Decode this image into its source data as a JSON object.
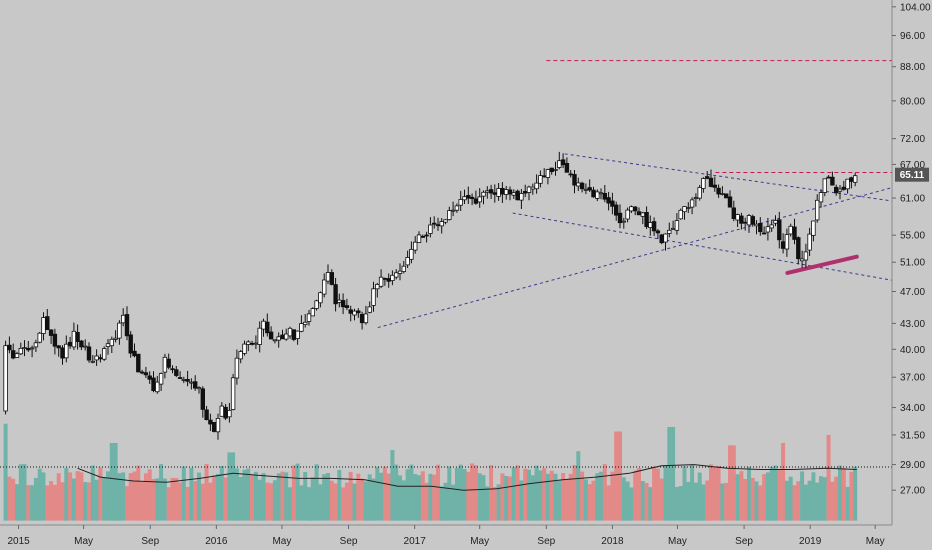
{
  "chart_data": {
    "type": "candlestick",
    "y_axis": {
      "scale": "log",
      "ylim": [
        24.5,
        106
      ],
      "ticks": [
        "104.00",
        "96.00",
        "88.00",
        "80.00",
        "72.00",
        "67.00",
        "61.00",
        "55.00",
        "51.00",
        "47.00",
        "43.00",
        "40.00",
        "37.00",
        "34.00",
        "31.50",
        "29.00",
        "27.00"
      ]
    },
    "x_axis": {
      "range": [
        "2014-11-24",
        "2019-06-01"
      ],
      "ticks": [
        {
          "date": "2015-01-01",
          "label": "2015"
        },
        {
          "date": "2015-05-01",
          "label": "May"
        },
        {
          "date": "2015-09-01",
          "label": "Sep"
        },
        {
          "date": "2016-01-01",
          "label": "2016"
        },
        {
          "date": "2016-05-01",
          "label": "May"
        },
        {
          "date": "2016-09-01",
          "label": "Sep"
        },
        {
          "date": "2017-01-01",
          "label": "2017"
        },
        {
          "date": "2017-05-01",
          "label": "May"
        },
        {
          "date": "2017-09-01",
          "label": "Sep"
        },
        {
          "date": "2018-01-01",
          "label": "2018"
        },
        {
          "date": "2018-05-01",
          "label": "May"
        },
        {
          "date": "2018-09-01",
          "label": "Sep"
        },
        {
          "date": "2019-01-01",
          "label": "2019"
        },
        {
          "date": "2019-05-01",
          "label": "May"
        }
      ]
    },
    "last_price": "65.11",
    "price_path": [
      [
        "2014-12-08",
        33.5
      ],
      [
        "2014-12-16",
        41.5
      ],
      [
        "2014-12-28",
        39.0
      ],
      [
        "2015-01-10",
        40.0
      ],
      [
        "2015-01-25",
        39.5
      ],
      [
        "2015-02-10",
        41.0
      ],
      [
        "2015-02-25",
        43.5
      ],
      [
        "2015-03-15",
        40.0
      ],
      [
        "2015-04-01",
        39.5
      ],
      [
        "2015-04-20",
        41.5
      ],
      [
        "2015-05-05",
        40.5
      ],
      [
        "2015-05-25",
        38.5
      ],
      [
        "2015-06-15",
        39.5
      ],
      [
        "2015-07-05",
        41.5
      ],
      [
        "2015-07-20",
        43.5
      ],
      [
        "2015-08-05",
        39.5
      ],
      [
        "2015-08-25",
        37.0
      ],
      [
        "2015-09-15",
        36.0
      ],
      [
        "2015-10-05",
        39.0
      ],
      [
        "2015-10-25",
        37.0
      ],
      [
        "2015-11-15",
        36.5
      ],
      [
        "2015-12-05",
        36.0
      ],
      [
        "2015-12-20",
        32.5
      ],
      [
        "2016-01-05",
        32.0
      ],
      [
        "2016-01-18",
        34.5
      ],
      [
        "2016-01-28",
        32.5
      ],
      [
        "2016-02-10",
        38.0
      ],
      [
        "2016-02-25",
        40.0
      ],
      [
        "2016-03-15",
        40.5
      ],
      [
        "2016-04-05",
        43.0
      ],
      [
        "2016-04-25",
        41.0
      ],
      [
        "2016-05-15",
        42.0
      ],
      [
        "2016-06-05",
        41.5
      ],
      [
        "2016-06-25",
        44.0
      ],
      [
        "2016-07-15",
        47.0
      ],
      [
        "2016-08-01",
        49.0
      ],
      [
        "2016-08-15",
        46.0
      ],
      [
        "2016-09-01",
        45.0
      ],
      [
        "2016-09-20",
        44.0
      ],
      [
        "2016-10-10",
        43.5
      ],
      [
        "2016-10-25",
        47.0
      ],
      [
        "2016-11-10",
        48.5
      ],
      [
        "2016-11-30",
        49.0
      ],
      [
        "2016-12-15",
        50.5
      ],
      [
        "2017-01-05",
        53.5
      ],
      [
        "2017-01-20",
        55.0
      ],
      [
        "2017-02-10",
        56.0
      ],
      [
        "2017-03-01",
        57.0
      ],
      [
        "2017-03-20",
        59.0
      ],
      [
        "2017-04-10",
        61.0
      ],
      [
        "2017-04-25",
        60.0
      ],
      [
        "2017-05-10",
        62.0
      ],
      [
        "2017-05-30",
        61.5
      ],
      [
        "2017-06-15",
        62.5
      ],
      [
        "2017-07-05",
        61.0
      ],
      [
        "2017-07-25",
        62.0
      ],
      [
        "2017-08-10",
        63.5
      ],
      [
        "2017-09-01",
        64.5
      ],
      [
        "2017-09-20",
        66.0
      ],
      [
        "2017-10-05",
        67.5
      ],
      [
        "2017-10-20",
        66.0
      ],
      [
        "2017-11-05",
        63.0
      ],
      [
        "2017-11-25",
        61.5
      ],
      [
        "2017-12-15",
        62.5
      ],
      [
        "2018-01-05",
        60.0
      ],
      [
        "2018-01-20",
        56.5
      ],
      [
        "2018-02-10",
        59.0
      ],
      [
        "2018-03-01",
        58.0
      ],
      [
        "2018-03-20",
        56.5
      ],
      [
        "2018-04-10",
        54.5
      ],
      [
        "2018-04-25",
        55.0
      ],
      [
        "2018-05-10",
        57.5
      ],
      [
        "2018-05-30",
        60.5
      ],
      [
        "2018-06-15",
        62.0
      ],
      [
        "2018-07-01",
        64.5
      ],
      [
        "2018-07-15",
        63.5
      ],
      [
        "2018-08-01",
        61.0
      ],
      [
        "2018-08-15",
        59.0
      ],
      [
        "2018-09-01",
        57.0
      ],
      [
        "2018-09-20",
        58.0
      ],
      [
        "2018-10-05",
        56.0
      ],
      [
        "2018-10-20",
        55.5
      ],
      [
        "2018-11-05",
        56.5
      ],
      [
        "2018-11-20",
        53.0
      ],
      [
        "2018-12-05",
        57.0
      ],
      [
        "2018-12-15",
        52.0
      ],
      [
        "2018-12-25",
        51.0
      ],
      [
        "2019-01-05",
        54.0
      ],
      [
        "2019-01-15",
        58.0
      ],
      [
        "2019-01-25",
        62.0
      ],
      [
        "2019-02-05",
        64.5
      ],
      [
        "2019-02-20",
        63.0
      ],
      [
        "2019-03-05",
        62.5
      ],
      [
        "2019-03-20",
        64.0
      ],
      [
        "2019-03-28",
        65.1
      ]
    ],
    "volume": {
      "moving_average_path": [
        [
          "2015-04-20",
          28.7
        ],
        [
          "2015-06-01",
          28.0
        ],
        [
          "2015-08-01",
          27.7
        ],
        [
          "2015-10-01",
          27.6
        ],
        [
          "2015-12-01",
          27.9
        ],
        [
          "2016-02-01",
          28.3
        ],
        [
          "2016-04-01",
          28.1
        ],
        [
          "2016-06-01",
          27.9
        ],
        [
          "2016-08-01",
          27.9
        ],
        [
          "2016-10-01",
          27.8
        ],
        [
          "2016-12-01",
          27.3
        ],
        [
          "2017-02-01",
          27.3
        ],
        [
          "2017-04-01",
          27.0
        ],
        [
          "2017-06-01",
          27.1
        ],
        [
          "2017-08-01",
          27.5
        ],
        [
          "2017-10-01",
          27.8
        ],
        [
          "2017-12-01",
          28.0
        ],
        [
          "2018-02-01",
          28.3
        ],
        [
          "2018-04-01",
          28.9
        ],
        [
          "2018-06-01",
          29.0
        ],
        [
          "2018-08-01",
          28.7
        ],
        [
          "2018-10-01",
          28.6
        ],
        [
          "2018-12-01",
          28.6
        ],
        [
          "2019-02-01",
          28.7
        ],
        [
          "2019-03-28",
          28.6
        ]
      ],
      "spikes": [
        [
          "2014-12-08",
          32.5
        ],
        [
          "2015-06-25",
          30.8
        ],
        [
          "2016-01-28",
          30.0
        ],
        [
          "2016-11-20",
          30.2
        ],
        [
          "2017-11-01",
          30.1
        ],
        [
          "2018-01-12",
          31.8
        ],
        [
          "2018-04-20",
          32.2
        ],
        [
          "2018-08-10",
          30.6
        ],
        [
          "2018-11-10",
          30.8
        ],
        [
          "2019-02-05",
          31.5
        ]
      ],
      "baseline_y": 24.8
    },
    "annotations": {
      "resistance_dashed_88": {
        "y": 89.5,
        "x": [
          "2017-09-01",
          "2019-06-01"
        ]
      },
      "resistance_dashed_65": {
        "y": 65.5,
        "x": [
          "2018-07-10",
          "2019-06-01"
        ]
      },
      "channel_upper": {
        "from": [
          "2017-10-05",
          69.0
        ],
        "to": [
          "2019-06-01",
          60.5
        ]
      },
      "channel_lower": {
        "from": [
          "2017-07-01",
          58.5
        ],
        "to": [
          "2019-06-01",
          48.5
        ]
      },
      "trendline": {
        "from": [
          "2016-10-25",
          42.5
        ],
        "to": [
          "2019-06-01",
          62.8
        ]
      },
      "support_highlight": {
        "from": [
          "2018-11-20",
          49.5
        ],
        "to": [
          "2019-03-28",
          51.8
        ]
      },
      "volume_reference_y": 28.8
    }
  }
}
